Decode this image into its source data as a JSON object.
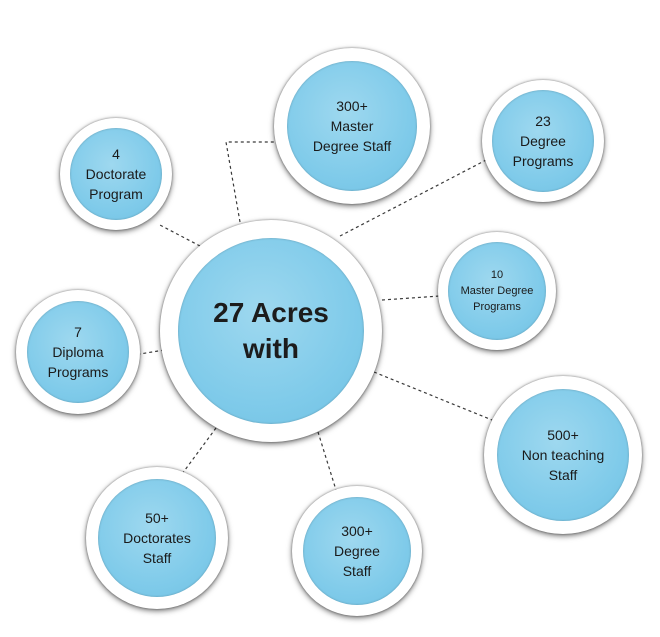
{
  "center": {
    "label": "27 Acres\nwith"
  },
  "nodes": {
    "doctorate_program": {
      "label": "4\nDoctorate\nProgram"
    },
    "master_staff": {
      "label": "300+\nMaster\nDegree Staff"
    },
    "degree_programs": {
      "label": "23\nDegree\nPrograms"
    },
    "master_programs": {
      "label": "10\nMaster Degree\nPrograms"
    },
    "diploma": {
      "label": "7\nDiploma\nPrograms"
    },
    "nonteaching": {
      "label": "500+\nNon teaching\nStaff"
    },
    "doctorates_staff": {
      "label": "50+\nDoctorates\nStaff"
    },
    "degree_staff": {
      "label": "300+\nDegree\nStaff"
    }
  },
  "colors": {
    "bubble_fill": "#80cbea",
    "ring": "#ffffff",
    "connector": "#3a3a3a"
  }
}
